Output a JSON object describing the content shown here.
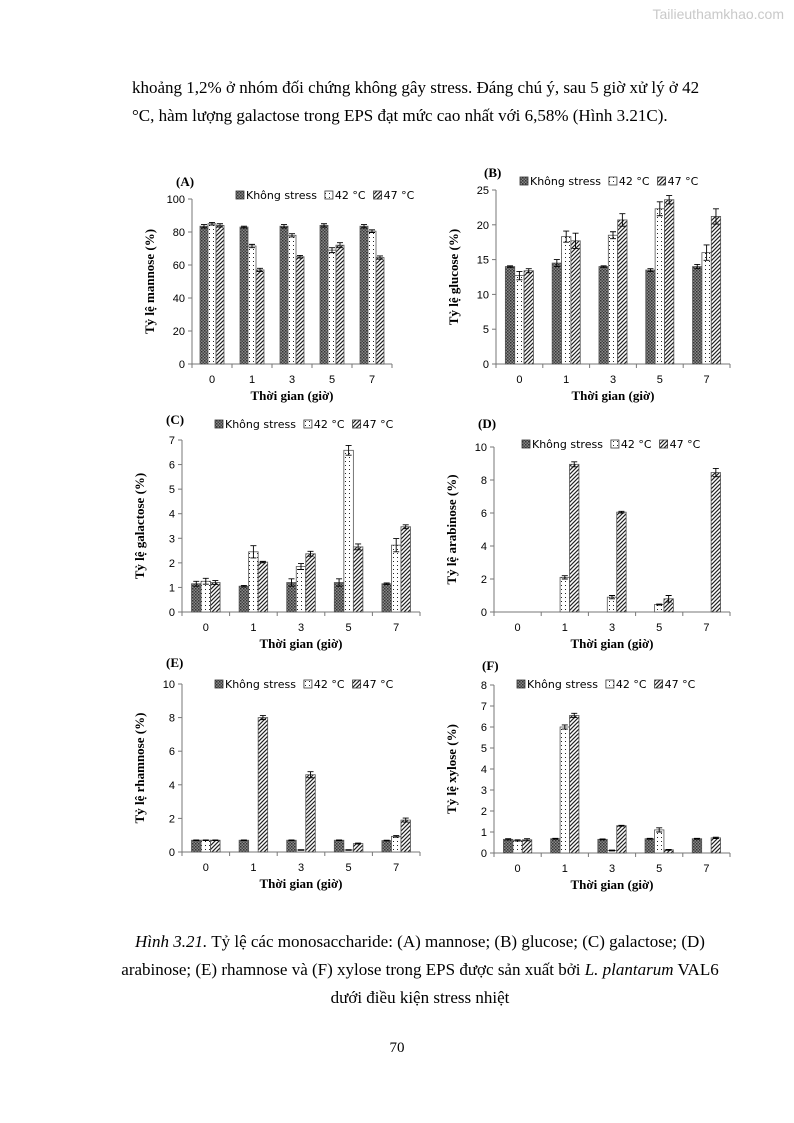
{
  "watermark": "Tailieuthamkhao.com",
  "paragraph": {
    "line1": "khoảng 1,2% ở nhóm đối chứng không gây stress. Đáng chú ý, sau 5 giờ xử lý ở 42",
    "line2": "°C, hàm lượng galactose trong EPS đạt mức cao nhất với 6,58% (Hình 3.21C)."
  },
  "caption": {
    "label": "Hình 3.21.",
    "text1": " Tỷ lệ các monosaccharide: (A) mannose; (B) glucose; (C) galactose; (D) arabinose; (E) rhamnose và (F) xylose trong EPS được sản xuất bởi ",
    "species": "L. plantarum",
    "text2": " VAL6 dưới điều kiện stress nhiệt"
  },
  "page_number": "70",
  "chart_data": [
    {
      "type": "bar",
      "panel": "(A)",
      "ylabel": "Tỷ lệ mannose (%)",
      "xlabel": "Thời gian (giờ)",
      "categories": [
        "0",
        "1",
        "3",
        "5",
        "7"
      ],
      "ylim": [
        0,
        100
      ],
      "yticks": [
        0,
        20,
        40,
        60,
        80,
        100
      ],
      "legend": "top",
      "series": [
        {
          "name": "Không stress",
          "values": [
            83.5,
            83,
            83.5,
            84,
            83.5
          ],
          "errors": [
            1,
            0.5,
            1,
            1,
            1
          ]
        },
        {
          "name": "42 °C",
          "values": [
            85,
            71.5,
            78,
            69,
            80.5
          ],
          "errors": [
            0.8,
            1,
            1,
            1.5,
            0.8
          ]
        },
        {
          "name": "47 °C",
          "values": [
            84,
            57,
            65,
            72,
            64.5
          ],
          "errors": [
            1,
            1,
            0.8,
            1.5,
            1
          ]
        }
      ]
    },
    {
      "type": "bar",
      "panel": "(B)",
      "ylabel": "Tỷ lệ glucose (%)",
      "xlabel": "Thời gian (giờ)",
      "categories": [
        "0",
        "1",
        "3",
        "5",
        "7"
      ],
      "ylim": [
        0,
        25
      ],
      "yticks": [
        0,
        5,
        10,
        15,
        20,
        25
      ],
      "legend": "top",
      "series": [
        {
          "name": "Không stress",
          "values": [
            14,
            14.5,
            14,
            13.5,
            14
          ],
          "errors": [
            0.1,
            0.5,
            0.1,
            0.2,
            0.3
          ]
        },
        {
          "name": "42 °C",
          "values": [
            12.7,
            18.3,
            18.5,
            22.3,
            16
          ],
          "errors": [
            0.6,
            0.8,
            0.5,
            1,
            1.1
          ]
        },
        {
          "name": "47 °C",
          "values": [
            13.4,
            17.7,
            20.7,
            23.6,
            21.2
          ],
          "errors": [
            0.3,
            1.1,
            0.9,
            0.6,
            1.1
          ]
        }
      ]
    },
    {
      "type": "bar",
      "panel": "(C)",
      "ylabel": "Tỷ lệ galactose (%)",
      "xlabel": "Thời gian (giờ)",
      "categories": [
        "0",
        "1",
        "3",
        "5",
        "7"
      ],
      "ylim": [
        0,
        7
      ],
      "yticks": [
        0,
        1,
        2,
        3,
        4,
        5,
        6,
        7
      ],
      "legend": "top",
      "series": [
        {
          "name": "Không stress",
          "values": [
            1.15,
            1.05,
            1.2,
            1.2,
            1.15
          ],
          "errors": [
            0.1,
            0.03,
            0.15,
            0.15,
            0.03
          ]
        },
        {
          "name": "42 °C",
          "values": [
            1.25,
            2.45,
            1.85,
            6.58,
            2.72
          ],
          "errors": [
            0.12,
            0.25,
            0.12,
            0.2,
            0.27
          ]
        },
        {
          "name": "47 °C",
          "values": [
            1.2,
            2.03,
            2.37,
            2.65,
            3.47
          ],
          "errors": [
            0.08,
            0.03,
            0.1,
            0.12,
            0.08
          ]
        }
      ]
    },
    {
      "type": "bar",
      "panel": "(D)",
      "ylabel": "Tỷ lệ arabinose (%)",
      "xlabel": "Thời gian (giờ)",
      "categories": [
        "0",
        "1",
        "3",
        "5",
        "7"
      ],
      "ylim": [
        0,
        10
      ],
      "yticks": [
        0,
        2,
        4,
        6,
        8,
        10
      ],
      "legend": "top",
      "series": [
        {
          "name": "Không stress",
          "values": [
            0,
            0,
            0,
            0,
            0
          ],
          "errors": [
            0,
            0,
            0,
            0,
            0
          ]
        },
        {
          "name": "42 °C",
          "values": [
            0,
            2.1,
            0.9,
            0.45,
            0
          ],
          "errors": [
            0,
            0.1,
            0.1,
            0.03,
            0
          ]
        },
        {
          "name": "47 °C",
          "values": [
            0,
            8.95,
            6.05,
            0.8,
            8.45
          ],
          "errors": [
            0,
            0.15,
            0.05,
            0.2,
            0.25
          ]
        }
      ]
    },
    {
      "type": "bar",
      "panel": "(E)",
      "ylabel": "Tỷ lệ rhamnose (%)",
      "xlabel": "Thời gian (giờ)",
      "categories": [
        "0",
        "1",
        "3",
        "5",
        "7"
      ],
      "ylim": [
        0,
        10
      ],
      "yticks": [
        0,
        2,
        4,
        6,
        8,
        10
      ],
      "legend": "top",
      "series": [
        {
          "name": "Không stress",
          "values": [
            0.7,
            0.7,
            0.7,
            0.7,
            0.68
          ],
          "errors": [
            0.02,
            0.02,
            0.02,
            0.02,
            0.02
          ]
        },
        {
          "name": "42 °C",
          "values": [
            0.7,
            0,
            0.12,
            0.12,
            0.93
          ],
          "errors": [
            0.02,
            0,
            0.02,
            0.02,
            0.05
          ]
        },
        {
          "name": "47 °C",
          "values": [
            0.7,
            8,
            4.6,
            0.5,
            1.9
          ],
          "errors": [
            0.02,
            0.12,
            0.18,
            0.03,
            0.12
          ]
        }
      ]
    },
    {
      "type": "bar",
      "panel": "(F)",
      "ylabel": "Tỷ lệ xylose (%)",
      "xlabel": "Thời gian (giờ)",
      "categories": [
        "0",
        "1",
        "3",
        "5",
        "7"
      ],
      "ylim": [
        0,
        8
      ],
      "yticks": [
        0,
        1,
        2,
        3,
        4,
        5,
        6,
        7,
        8
      ],
      "legend": "top",
      "series": [
        {
          "name": "Không stress",
          "values": [
            0.65,
            0.68,
            0.65,
            0.68,
            0.68
          ],
          "errors": [
            0.03,
            0.02,
            0.02,
            0.02,
            0.02
          ]
        },
        {
          "name": "42 °C",
          "values": [
            0.6,
            6,
            0.12,
            1.1,
            0
          ],
          "errors": [
            0.03,
            0.1,
            0.02,
            0.1,
            0
          ]
        },
        {
          "name": "47 °C",
          "values": [
            0.63,
            6.55,
            1.3,
            0.15,
            0.72
          ],
          "errors": [
            0.05,
            0.1,
            0.02,
            0.02,
            0.03
          ]
        }
      ]
    }
  ]
}
